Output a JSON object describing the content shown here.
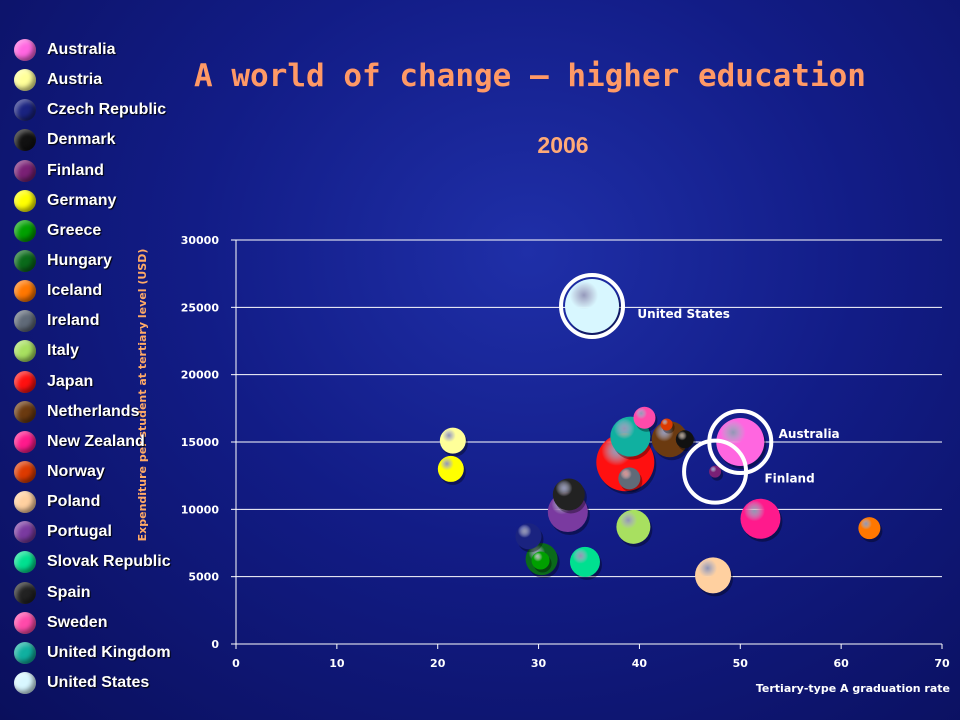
{
  "chart_data": {
    "type": "scatter",
    "title": "A world of change – higher education",
    "subtitle": "2006",
    "xlabel": "Tertiary-type A graduation rate",
    "ylabel": "Expenditure per student at tertiary level (USD)",
    "xlim": [
      0,
      70
    ],
    "ylim": [
      0,
      30000
    ],
    "x_ticks": [
      0,
      10,
      20,
      30,
      40,
      50,
      60,
      70
    ],
    "y_ticks": [
      0,
      5000,
      10000,
      15000,
      20000,
      25000,
      30000
    ],
    "grid": "horizontal",
    "legend_position": "left",
    "series": [
      {
        "name": "Australia",
        "color": "#ff66e0",
        "x": 50,
        "y": 15000,
        "r": 24,
        "ring": true
      },
      {
        "name": "Austria",
        "color": "#ffff99",
        "x": 21.5,
        "y": 15100,
        "r": 13
      },
      {
        "name": "Czech Republic",
        "color": "#1a2380",
        "x": 29,
        "y": 8000,
        "r": 13
      },
      {
        "name": "Denmark",
        "color": "#111111",
        "x": 44.5,
        "y": 15200,
        "r": 9
      },
      {
        "name": "Finland",
        "color": "#7a2075",
        "x": 47.5,
        "y": 12800,
        "r": 6,
        "ring": true
      },
      {
        "name": "Germany",
        "color": "#ffff00",
        "x": 21.3,
        "y": 13000,
        "r": 13
      },
      {
        "name": "Greece",
        "color": "#00a000",
        "x": 30.2,
        "y": 6200,
        "r": 9
      },
      {
        "name": "Hungary",
        "color": "#0a6a1a",
        "x": 30.3,
        "y": 6300,
        "r": 16
      },
      {
        "name": "Iceland",
        "color": "#ff7700",
        "x": 62.8,
        "y": 8600,
        "r": 11
      },
      {
        "name": "Ireland",
        "color": "#606a78",
        "x": 39,
        "y": 12300,
        "r": 11
      },
      {
        "name": "Italy",
        "color": "#a8e060",
        "x": 39.4,
        "y": 8700,
        "r": 17
      },
      {
        "name": "Japan",
        "color": "#ff1010",
        "x": 38.6,
        "y": 13500,
        "r": 29
      },
      {
        "name": "Netherlands",
        "color": "#6b3a10",
        "x": 43,
        "y": 15200,
        "r": 18
      },
      {
        "name": "New Zealand",
        "color": "#ff1a8c",
        "x": 52,
        "y": 9300,
        "r": 20
      },
      {
        "name": "Norway",
        "color": "#dd3a00",
        "x": 42.7,
        "y": 16300,
        "r": 6
      },
      {
        "name": "Poland",
        "color": "#ffd0a0",
        "x": 47.3,
        "y": 5100,
        "r": 18
      },
      {
        "name": "Portugal",
        "color": "#7a3aa0",
        "x": 32.9,
        "y": 9800,
        "r": 20
      },
      {
        "name": "Slovak Republic",
        "color": "#00e090",
        "x": 34.6,
        "y": 6100,
        "r": 15
      },
      {
        "name": "Spain",
        "color": "#222222",
        "x": 33,
        "y": 11100,
        "r": 16
      },
      {
        "name": "Sweden",
        "color": "#ff4aaa",
        "x": 40.5,
        "y": 16800,
        "r": 11
      },
      {
        "name": "United Kingdom",
        "color": "#10b0a0",
        "x": 39.1,
        "y": 15400,
        "r": 20
      },
      {
        "name": "United States",
        "color": "#d8f7ff",
        "x": 35.3,
        "y": 25100,
        "r": 27,
        "ring": true
      }
    ],
    "annotations": [
      {
        "text": "United States",
        "x": 39.8,
        "y": 24500
      },
      {
        "text": "Australia",
        "x": 53.8,
        "y": 15600
      },
      {
        "text": "Finland",
        "x": 52.4,
        "y": 12300
      }
    ]
  }
}
